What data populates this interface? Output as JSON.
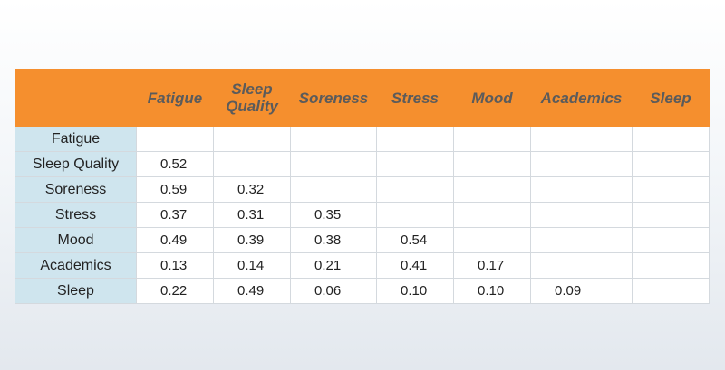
{
  "chart_data": {
    "type": "table",
    "columns": [
      "Fatigue",
      "Sleep Quality",
      "Soreness",
      "Stress",
      "Mood",
      "Academics",
      "Sleep"
    ],
    "rows": [
      {
        "label": "Fatigue",
        "values": [
          "",
          "",
          "",
          "",
          "",
          "",
          ""
        ]
      },
      {
        "label": "Sleep Quality",
        "values": [
          "0.52",
          "",
          "",
          "",
          "",
          "",
          ""
        ]
      },
      {
        "label": "Soreness",
        "values": [
          "0.59",
          "0.32",
          "",
          "",
          "",
          "",
          ""
        ]
      },
      {
        "label": "Stress",
        "values": [
          "0.37",
          "0.31",
          "0.35",
          "",
          "",
          "",
          ""
        ]
      },
      {
        "label": "Mood",
        "values": [
          "0.49",
          "0.39",
          "0.38",
          "0.54",
          "",
          "",
          ""
        ]
      },
      {
        "label": "Academics",
        "values": [
          "0.13",
          "0.14",
          "0.21",
          "0.41",
          "0.17",
          "",
          ""
        ]
      },
      {
        "label": "Sleep",
        "values": [
          "0.22",
          "0.49",
          "0.06",
          "0.10",
          "0.10",
          "0.09",
          ""
        ]
      }
    ]
  },
  "colors": {
    "header_bg": "#f58f2e",
    "header_text": "#5b5b5b",
    "row_label_bg": "#cfe5ee",
    "cell_bg": "#ffffff"
  }
}
